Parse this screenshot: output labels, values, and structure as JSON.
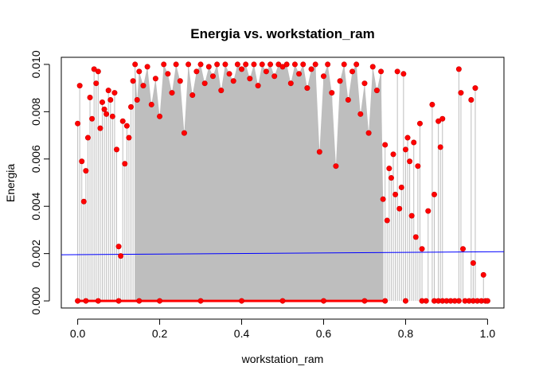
{
  "chart_data": {
    "type": "scatter",
    "title": "Energia vs. workstation_ram",
    "xlabel": "workstation_ram",
    "ylabel": "Energia",
    "xlim": [
      -0.04,
      1.04
    ],
    "ylim": [
      -0.0003,
      0.0103
    ],
    "x_ticks": [
      0.0,
      0.2,
      0.4,
      0.6,
      0.8,
      1.0
    ],
    "x_tick_labels": [
      "0.0",
      "0.2",
      "0.4",
      "0.6",
      "0.8",
      "1.0"
    ],
    "y_ticks": [
      0.0,
      0.002,
      0.004,
      0.006,
      0.008,
      0.01
    ],
    "y_tick_labels": [
      "0.000",
      "0.002",
      "0.004",
      "0.006",
      "0.008",
      "0.010"
    ],
    "grid": false,
    "legend": "none",
    "point_color": "#ff0000",
    "stem_color": "#bebebe",
    "trend_color": "#0000ff",
    "trend_line": {
      "x": [
        -0.04,
        1.04
      ],
      "y": [
        0.00195,
        0.00208
      ]
    },
    "series": [
      {
        "points": [
          [
            0.0,
            0.0075
          ],
          [
            0.005,
            0.0091
          ],
          [
            0.01,
            0.0059
          ],
          [
            0.015,
            0.0042
          ],
          [
            0.02,
            0.0055
          ],
          [
            0.025,
            0.0069
          ],
          [
            0.03,
            0.0086
          ],
          [
            0.035,
            0.0077
          ],
          [
            0.04,
            0.0098
          ],
          [
            0.045,
            0.0092
          ],
          [
            0.05,
            0.0097
          ],
          [
            0.055,
            0.0073
          ],
          [
            0.06,
            0.0084
          ],
          [
            0.065,
            0.0081
          ],
          [
            0.07,
            0.0079
          ],
          [
            0.075,
            0.0089
          ],
          [
            0.08,
            0.0085
          ],
          [
            0.085,
            0.0078
          ],
          [
            0.09,
            0.0088
          ],
          [
            0.095,
            0.0064
          ],
          [
            0.1,
            0.0023
          ],
          [
            0.105,
            0.0019
          ],
          [
            0.11,
            0.0076
          ],
          [
            0.115,
            0.0058
          ],
          [
            0.12,
            0.0074
          ],
          [
            0.125,
            0.0069
          ],
          [
            0.13,
            0.0082
          ],
          [
            0.135,
            0.0093
          ],
          [
            0.14,
            0.01
          ],
          [
            0.145,
            0.0085
          ],
          [
            0.15,
            0.0097
          ],
          [
            0.16,
            0.0091
          ],
          [
            0.17,
            0.0099
          ],
          [
            0.18,
            0.0083
          ],
          [
            0.19,
            0.0094
          ],
          [
            0.2,
            0.0078
          ],
          [
            0.21,
            0.01
          ],
          [
            0.22,
            0.0096
          ],
          [
            0.23,
            0.0088
          ],
          [
            0.24,
            0.01
          ],
          [
            0.25,
            0.0093
          ],
          [
            0.26,
            0.0071
          ],
          [
            0.27,
            0.01
          ],
          [
            0.28,
            0.0087
          ],
          [
            0.29,
            0.0097
          ],
          [
            0.3,
            0.01
          ],
          [
            0.31,
            0.0092
          ],
          [
            0.32,
            0.0099
          ],
          [
            0.33,
            0.0095
          ],
          [
            0.34,
            0.01
          ],
          [
            0.35,
            0.0089
          ],
          [
            0.36,
            0.01
          ],
          [
            0.37,
            0.0096
          ],
          [
            0.38,
            0.0093
          ],
          [
            0.39,
            0.01
          ],
          [
            0.4,
            0.0098
          ],
          [
            0.41,
            0.01
          ],
          [
            0.42,
            0.0094
          ],
          [
            0.43,
            0.01
          ],
          [
            0.44,
            0.0091
          ],
          [
            0.45,
            0.01
          ],
          [
            0.46,
            0.0097
          ],
          [
            0.47,
            0.01
          ],
          [
            0.48,
            0.0095
          ],
          [
            0.49,
            0.01
          ],
          [
            0.5,
            0.0099
          ],
          [
            0.51,
            0.01
          ],
          [
            0.52,
            0.0092
          ],
          [
            0.53,
            0.01
          ],
          [
            0.54,
            0.0096
          ],
          [
            0.55,
            0.01
          ],
          [
            0.56,
            0.009
          ],
          [
            0.57,
            0.0098
          ],
          [
            0.58,
            0.01
          ],
          [
            0.59,
            0.0063
          ],
          [
            0.6,
            0.0095
          ],
          [
            0.61,
            0.01
          ],
          [
            0.62,
            0.0088
          ],
          [
            0.63,
            0.0057
          ],
          [
            0.64,
            0.0093
          ],
          [
            0.65,
            0.01
          ],
          [
            0.66,
            0.0085
          ],
          [
            0.67,
            0.0097
          ],
          [
            0.68,
            0.01
          ],
          [
            0.69,
            0.0079
          ],
          [
            0.7,
            0.0092
          ],
          [
            0.71,
            0.0071
          ],
          [
            0.72,
            0.0099
          ],
          [
            0.73,
            0.0089
          ],
          [
            0.74,
            0.0097
          ],
          [
            0.745,
            0.0043
          ],
          [
            0.75,
            0.0066
          ],
          [
            0.755,
            0.0034
          ],
          [
            0.76,
            0.0056
          ],
          [
            0.765,
            0.0052
          ],
          [
            0.77,
            0.0062
          ],
          [
            0.775,
            0.0045
          ],
          [
            0.78,
            0.0097
          ],
          [
            0.785,
            0.0039
          ],
          [
            0.79,
            0.0048
          ],
          [
            0.795,
            0.0096
          ],
          [
            0.8,
            0.0064
          ],
          [
            0.805,
            0.0069
          ],
          [
            0.81,
            0.0059
          ],
          [
            0.815,
            0.0036
          ],
          [
            0.82,
            0.0067
          ],
          [
            0.825,
            0.0027
          ],
          [
            0.83,
            0.0057
          ],
          [
            0.835,
            0.0075
          ],
          [
            0.84,
            0.0022
          ],
          [
            0.855,
            0.0038
          ],
          [
            0.865,
            0.0083
          ],
          [
            0.87,
            0.0045
          ],
          [
            0.88,
            0.0076
          ],
          [
            0.885,
            0.0065
          ],
          [
            0.89,
            0.0077
          ],
          [
            0.93,
            0.0098
          ],
          [
            0.935,
            0.0088
          ],
          [
            0.94,
            0.0022
          ],
          [
            0.96,
            0.0085
          ],
          [
            0.965,
            0.0016
          ],
          [
            0.97,
            0.009
          ],
          [
            0.99,
            0.0011
          ],
          [
            0.0,
            0.0
          ],
          [
            0.02,
            0.0
          ],
          [
            0.05,
            0.0
          ],
          [
            0.1,
            0.0
          ],
          [
            0.15,
            0.0
          ],
          [
            0.2,
            0.0
          ],
          [
            0.3,
            0.0
          ],
          [
            0.4,
            0.0
          ],
          [
            0.5,
            0.0
          ],
          [
            0.6,
            0.0
          ],
          [
            0.7,
            0.0
          ],
          [
            0.75,
            0.0
          ],
          [
            0.8,
            0.0
          ],
          [
            0.84,
            0.0
          ],
          [
            0.85,
            0.0
          ],
          [
            0.87,
            0.0
          ],
          [
            0.88,
            0.0
          ],
          [
            0.89,
            0.0
          ],
          [
            0.9,
            0.0
          ],
          [
            0.91,
            0.0
          ],
          [
            0.92,
            0.0
          ],
          [
            0.93,
            0.0
          ],
          [
            0.945,
            0.0
          ],
          [
            0.955,
            0.0
          ],
          [
            0.965,
            0.0
          ],
          [
            0.975,
            0.0
          ],
          [
            0.985,
            0.0
          ],
          [
            0.995,
            0.0
          ],
          [
            1.0,
            0.0
          ]
        ]
      }
    ]
  }
}
